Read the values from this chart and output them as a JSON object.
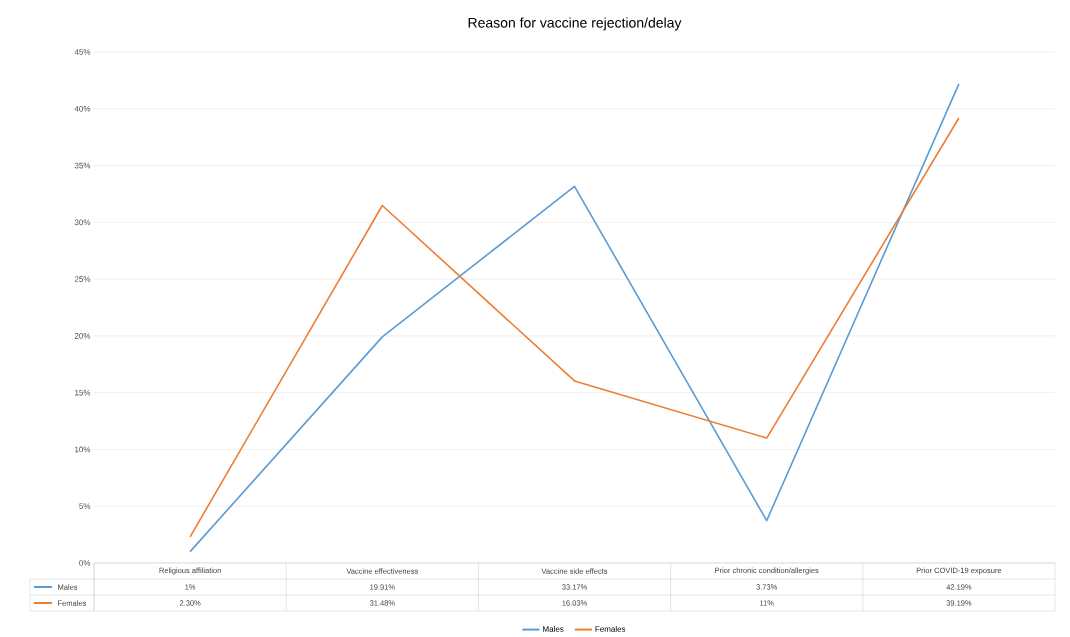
{
  "chart_data": {
    "type": "line",
    "title": "Reason for vaccine rejection/delay",
    "categories": [
      "Religious affiliation",
      "Vaccine effectiveness",
      "Vaccine side effects",
      "Prior chronic condition/allergies",
      "Prior COVID-19 exposure"
    ],
    "series": [
      {
        "name": "Males",
        "color": "#5b9bd5",
        "values": [
          1,
          19.91,
          33.17,
          3.73,
          42.19
        ],
        "value_labels": [
          "1%",
          "19.91%",
          "33.17%",
          "3.73%",
          "42.19%"
        ]
      },
      {
        "name": "Females",
        "color": "#ed7d31",
        "values": [
          2.3,
          31.48,
          16.03,
          11,
          39.19
        ],
        "value_labels": [
          "2.30%",
          "31.48%",
          "16.03%",
          "11%",
          "39.19%"
        ]
      }
    ],
    "ylim": [
      0,
      45
    ],
    "yticks": [
      {
        "value": 0,
        "label": "0%"
      },
      {
        "value": 5,
        "label": "5%"
      },
      {
        "value": 10,
        "label": "10%"
      },
      {
        "value": 15,
        "label": "15%"
      },
      {
        "value": 20,
        "label": "20%"
      },
      {
        "value": 25,
        "label": "25%"
      },
      {
        "value": 30,
        "label": "30%"
      },
      {
        "value": 35,
        "label": "35%"
      },
      {
        "value": 40,
        "label": "40%"
      },
      {
        "value": 45,
        "label": "45%"
      }
    ],
    "grid": "y",
    "legend": "bottom",
    "marker": "none",
    "line_style": "solid"
  }
}
